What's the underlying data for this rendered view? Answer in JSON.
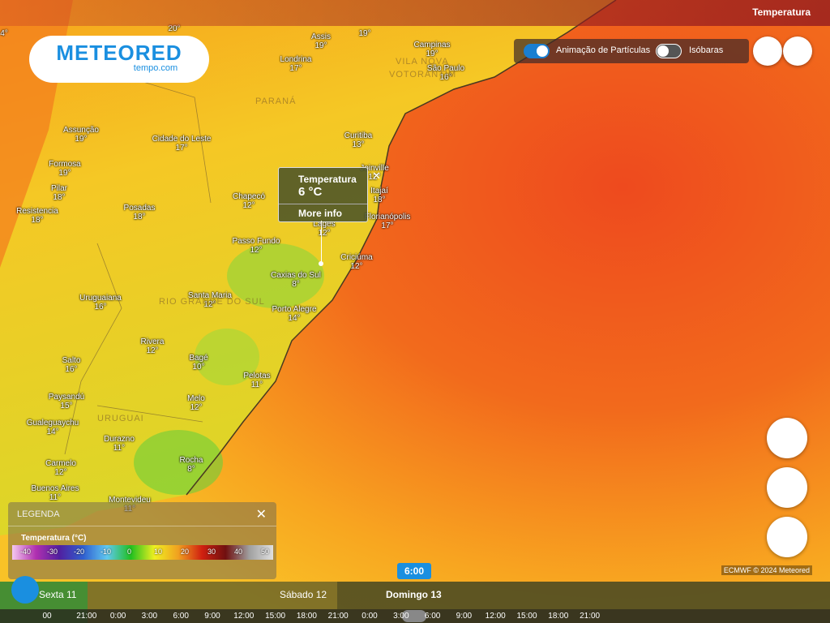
{
  "header": {
    "title": "Temperatura"
  },
  "logo": {
    "brand": "METEORED",
    "site": "tempo.com"
  },
  "toggles": [
    {
      "label": "Animação de Partículas"
    },
    {
      "label": "Isóbaras"
    }
  ],
  "popup": {
    "title": "Temperatura",
    "value": "6 °C",
    "link": "More info"
  },
  "edge_labels": [
    "20°",
    "4°",
    "19°"
  ],
  "regions": [
    "PARANÁ",
    "RIO GRANDE DO SUL",
    "URUGUAI",
    "VILA NOVA",
    "VOTORANTIM"
  ],
  "cities": [
    {
      "name": "Assis",
      "temp": "19°"
    },
    {
      "name": "Campinas",
      "temp": "19°"
    },
    {
      "name": "Londrina",
      "temp": "17°"
    },
    {
      "name": "São Paulo",
      "temp": "16°"
    },
    {
      "name": "Assunção",
      "temp": "19°"
    },
    {
      "name": "Cidade do Leste",
      "temp": "17°"
    },
    {
      "name": "Curitiba",
      "temp": "13°"
    },
    {
      "name": "Formosa",
      "temp": "19°"
    },
    {
      "name": "Joinville",
      "temp": "12°"
    },
    {
      "name": "Pilar",
      "temp": "18°"
    },
    {
      "name": "Itajaí",
      "temp": "18°"
    },
    {
      "name": "Chapecó",
      "temp": "12°"
    },
    {
      "name": "Resistencia",
      "temp": "18°"
    },
    {
      "name": "Posadas",
      "temp": "18°"
    },
    {
      "name": "Florianópolis",
      "temp": "17°"
    },
    {
      "name": "Lages",
      "temp": "12°"
    },
    {
      "name": "Passo Fundo",
      "temp": "12°"
    },
    {
      "name": "Criciúma",
      "temp": "12°"
    },
    {
      "name": "Caxias do Sul",
      "temp": "8°"
    },
    {
      "name": "Uruguaiana",
      "temp": "16°"
    },
    {
      "name": "Santa Maria",
      "temp": "12°"
    },
    {
      "name": "Porto Alegre",
      "temp": "14°"
    },
    {
      "name": "Rivera",
      "temp": "12°"
    },
    {
      "name": "Salto",
      "temp": "16°"
    },
    {
      "name": "Bagé",
      "temp": "10°"
    },
    {
      "name": "Pelotas",
      "temp": "11°"
    },
    {
      "name": "Paysandú",
      "temp": "15°"
    },
    {
      "name": "Melo",
      "temp": "12°"
    },
    {
      "name": "Gualeguaychu",
      "temp": "14°"
    },
    {
      "name": "Durazno",
      "temp": "11°"
    },
    {
      "name": "Carmelo",
      "temp": "12°"
    },
    {
      "name": "Rocha",
      "temp": "8°"
    },
    {
      "name": "Buenos Aires",
      "temp": "11°"
    },
    {
      "name": "Montevideu",
      "temp": "11°"
    }
  ],
  "legend": {
    "title": "LEGENDA",
    "subtitle": "Temperatura (°C)",
    "scale": [
      -40,
      -30,
      -20,
      -10,
      0,
      10,
      20,
      30,
      40,
      50
    ]
  },
  "attribution": "ECMWF © 2024 Meteored",
  "timeline": {
    "current": "6:00",
    "days": [
      "Sexta 11",
      "Sábado 12",
      "Domingo 13"
    ],
    "hours": [
      "00",
      "21:00",
      "0:00",
      "3:00",
      "6:00",
      "9:00",
      "12:00",
      "15:00",
      "18:00",
      "21:00",
      "0:00",
      "3:00",
      "6:00",
      "9:00",
      "12:00",
      "15:00",
      "18:00",
      "21:00"
    ]
  }
}
